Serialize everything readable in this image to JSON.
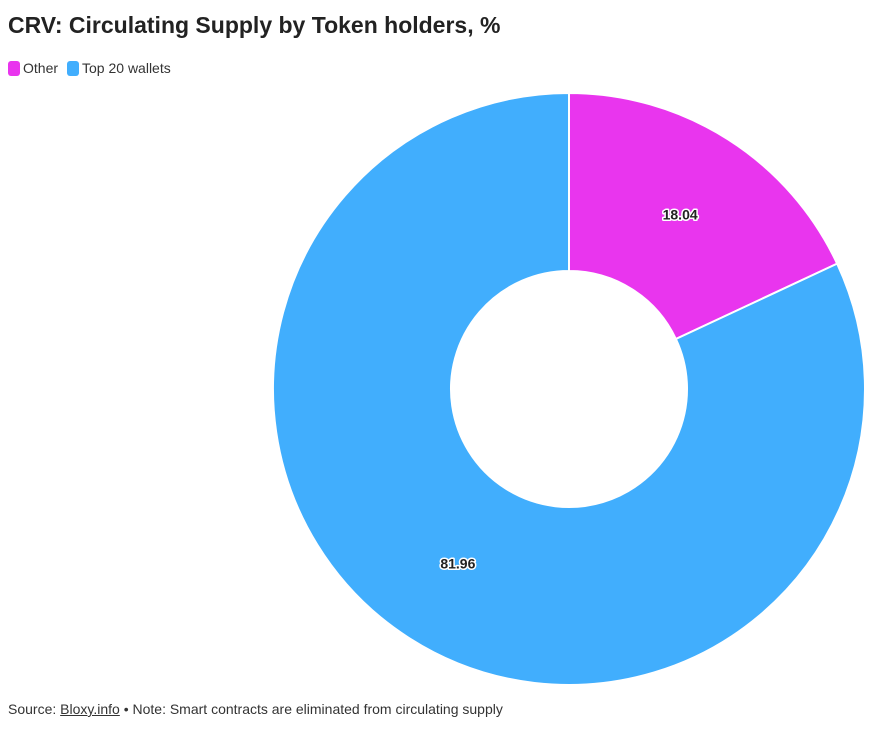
{
  "chart_data": {
    "type": "pie",
    "title": "CRV: Circulating Supply by Token holders, %",
    "categories": [
      "Other",
      "Top 20 wallets"
    ],
    "values": [
      18.04,
      81.96
    ],
    "colors": [
      "#e935ee",
      "#41aefd"
    ],
    "legend_position": "top-left",
    "donut": true
  },
  "footer": {
    "source_prefix": "Source: ",
    "source_link": "Bloxy.info",
    "note": " • Note: Smart contracts are eliminated from circulating supply"
  }
}
